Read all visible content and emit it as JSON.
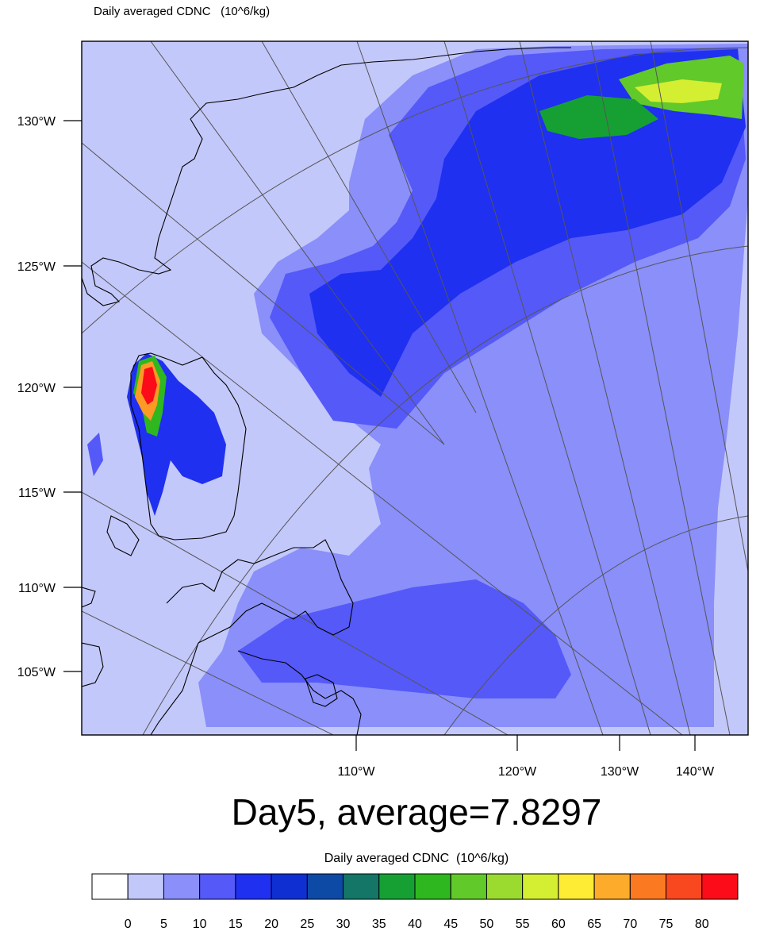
{
  "header": {
    "variable_label": "Daily averaged CDNC",
    "units": "(10^6/kg)"
  },
  "title": "Day5, average=7.8297",
  "left_axis_labels": [
    "130°W",
    "125°W",
    "120°W",
    "115°W",
    "110°W",
    "105°W"
  ],
  "bottom_axis_labels": [
    "110°W",
    "120°W",
    "130°W",
    "140°W"
  ],
  "colorbar": {
    "title": "Daily averaged CDNC",
    "units": "(10^6/kg)",
    "tick_labels": [
      "0",
      "5",
      "10",
      "15",
      "20",
      "25",
      "30",
      "35",
      "40",
      "45",
      "50",
      "55",
      "60",
      "65",
      "70",
      "75",
      "80"
    ],
    "colors": [
      "#ffffff",
      "#c3c8fa",
      "#8a8ffa",
      "#5559f8",
      "#1f30f0",
      "#0f2fd2",
      "#0d4aa6",
      "#137667",
      "#16a034",
      "#2fb71f",
      "#62c92a",
      "#9bdb2f",
      "#d4ee32",
      "#feeb33",
      "#fdab2a",
      "#fb7a21",
      "#f9481f",
      "#fb0c18"
    ]
  },
  "colors": {
    "background_field": "#c3c8fa",
    "coast": "#000000",
    "grid": "#555555"
  }
}
